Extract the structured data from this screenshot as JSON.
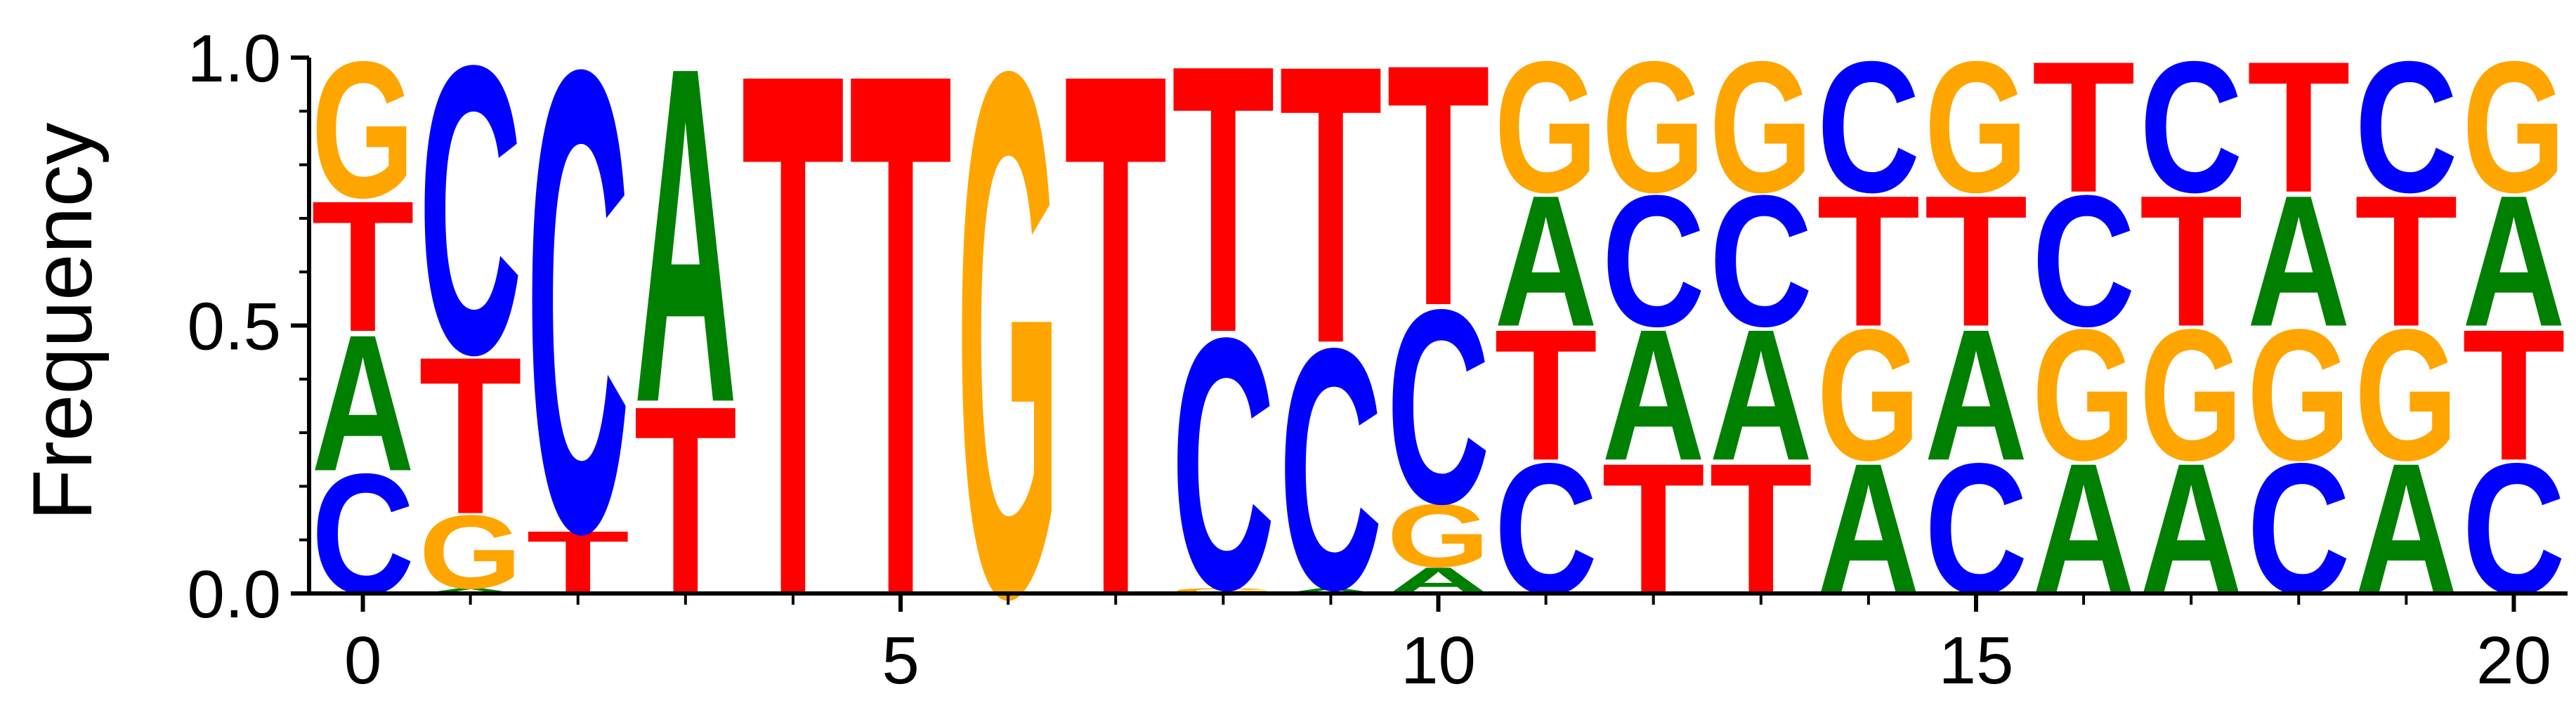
{
  "chart_data": {
    "type": "sequence-logo",
    "title": "",
    "xlabel": "",
    "ylabel": "Frequency",
    "xlim": [
      -0.5,
      20.5
    ],
    "ylim": [
      0,
      1
    ],
    "x_ticks": [
      0,
      5,
      10,
      15,
      20
    ],
    "x_tick_labels": [
      "0",
      "5",
      "10",
      "15",
      "20"
    ],
    "y_ticks": [
      0,
      0.5,
      1
    ],
    "y_tick_labels": [
      "0.0",
      "0.5",
      "1.0"
    ],
    "y_minor_ticks": [
      0.1,
      0.2,
      0.3,
      0.4,
      0.6,
      0.7,
      0.8,
      0.9
    ],
    "colors": {
      "A": "#008000",
      "C": "#0000ff",
      "G": "#ffa500",
      "T": "#ff0000"
    },
    "positions": [
      {
        "pos": 0,
        "stack": [
          [
            "C",
            0.23
          ],
          [
            "A",
            0.26
          ],
          [
            "T",
            0.25
          ],
          [
            "G",
            0.26
          ]
        ]
      },
      {
        "pos": 1,
        "stack": [
          [
            "A",
            0.01
          ],
          [
            "G",
            0.14
          ],
          [
            "T",
            0.3
          ],
          [
            "C",
            0.55
          ]
        ]
      },
      {
        "pos": 2,
        "stack": [
          [
            "T",
            0.12
          ],
          [
            "C",
            0.88
          ]
        ]
      },
      {
        "pos": 3,
        "stack": [
          [
            "T",
            0.36
          ],
          [
            "A",
            0.64
          ]
        ]
      },
      {
        "pos": 4,
        "stack": [
          [
            "T",
            1.0
          ]
        ]
      },
      {
        "pos": 5,
        "stack": [
          [
            "T",
            1.0
          ]
        ]
      },
      {
        "pos": 6,
        "stack": [
          [
            "G",
            1.0
          ]
        ]
      },
      {
        "pos": 7,
        "stack": [
          [
            "T",
            1.0
          ]
        ]
      },
      {
        "pos": 8,
        "stack": [
          [
            "G",
            0.01
          ],
          [
            "C",
            0.48
          ],
          [
            "T",
            0.51
          ]
        ]
      },
      {
        "pos": 9,
        "stack": [
          [
            "A",
            0.01
          ],
          [
            "C",
            0.46
          ],
          [
            "T",
            0.53
          ]
        ]
      },
      {
        "pos": 10,
        "stack": [
          [
            "A",
            0.05
          ],
          [
            "G",
            0.12
          ],
          [
            "C",
            0.37
          ],
          [
            "T",
            0.46
          ]
        ]
      },
      {
        "pos": 11,
        "stack": [
          [
            "C",
            0.25
          ],
          [
            "T",
            0.25
          ],
          [
            "A",
            0.25
          ],
          [
            "G",
            0.25
          ]
        ]
      },
      {
        "pos": 12,
        "stack": [
          [
            "T",
            0.25
          ],
          [
            "A",
            0.25
          ],
          [
            "C",
            0.25
          ],
          [
            "G",
            0.25
          ]
        ]
      },
      {
        "pos": 13,
        "stack": [
          [
            "T",
            0.25
          ],
          [
            "A",
            0.25
          ],
          [
            "C",
            0.25
          ],
          [
            "G",
            0.25
          ]
        ]
      },
      {
        "pos": 14,
        "stack": [
          [
            "A",
            0.25
          ],
          [
            "G",
            0.25
          ],
          [
            "T",
            0.25
          ],
          [
            "C",
            0.25
          ]
        ]
      },
      {
        "pos": 15,
        "stack": [
          [
            "C",
            0.25
          ],
          [
            "A",
            0.25
          ],
          [
            "T",
            0.25
          ],
          [
            "G",
            0.25
          ]
        ]
      },
      {
        "pos": 16,
        "stack": [
          [
            "A",
            0.25
          ],
          [
            "G",
            0.25
          ],
          [
            "C",
            0.25
          ],
          [
            "T",
            0.25
          ]
        ]
      },
      {
        "pos": 17,
        "stack": [
          [
            "A",
            0.25
          ],
          [
            "G",
            0.25
          ],
          [
            "T",
            0.25
          ],
          [
            "C",
            0.25
          ]
        ]
      },
      {
        "pos": 18,
        "stack": [
          [
            "C",
            0.25
          ],
          [
            "G",
            0.25
          ],
          [
            "A",
            0.25
          ],
          [
            "T",
            0.25
          ]
        ]
      },
      {
        "pos": 19,
        "stack": [
          [
            "A",
            0.25
          ],
          [
            "G",
            0.25
          ],
          [
            "T",
            0.25
          ],
          [
            "C",
            0.25
          ]
        ]
      },
      {
        "pos": 20,
        "stack": [
          [
            "C",
            0.25
          ],
          [
            "T",
            0.25
          ],
          [
            "A",
            0.25
          ],
          [
            "G",
            0.25
          ]
        ]
      }
    ]
  }
}
